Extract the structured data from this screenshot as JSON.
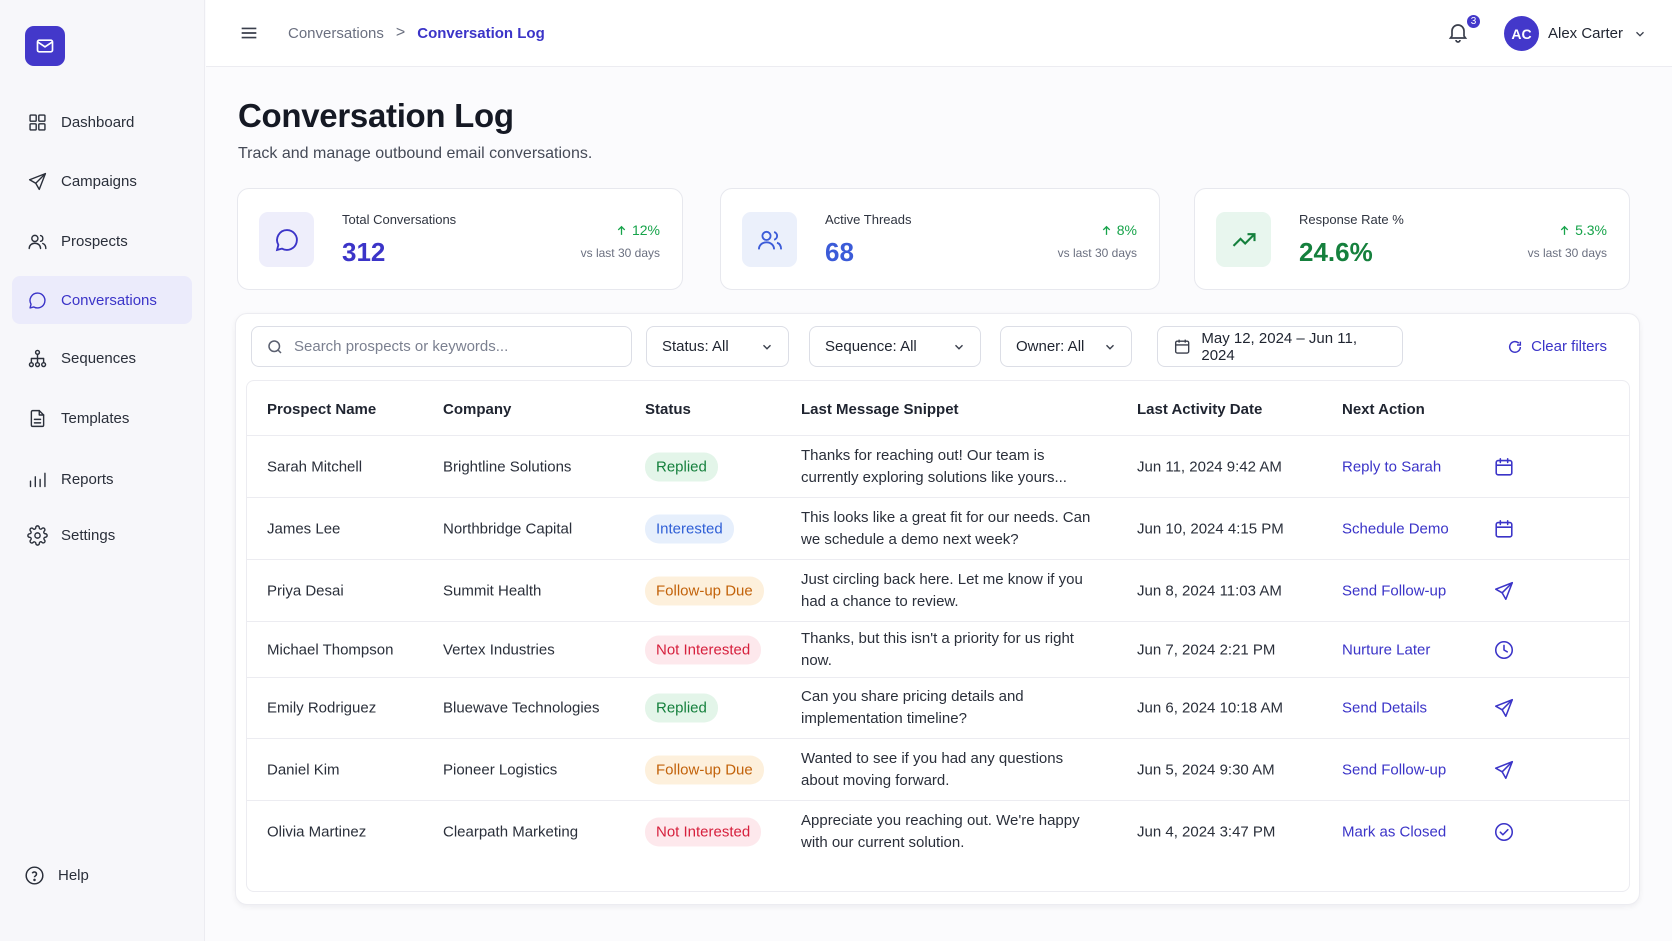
{
  "sidebar": {
    "logo_icon": "mail-icon",
    "items": [
      {
        "label": "Dashboard",
        "icon": "grid-icon",
        "active": false
      },
      {
        "label": "Campaigns",
        "icon": "send-icon",
        "active": false
      },
      {
        "label": "Prospects",
        "icon": "users-icon",
        "active": false
      },
      {
        "label": "Conversations",
        "icon": "chat-icon",
        "active": true
      },
      {
        "label": "Sequences",
        "icon": "hierarchy-icon",
        "active": false
      },
      {
        "label": "Templates",
        "icon": "document-icon",
        "active": false
      },
      {
        "label": "Reports",
        "icon": "bar-chart-icon",
        "active": false
      },
      {
        "label": "Settings",
        "icon": "gear-icon",
        "active": false
      }
    ],
    "help_label": "Help"
  },
  "header": {
    "breadcrumb_parent": "Conversations",
    "breadcrumb_separator": ">",
    "breadcrumb_current": "Conversation Log",
    "notification_count": "3",
    "user_initials": "AC",
    "user_name": "Alex Carter"
  },
  "page": {
    "title": "Conversation Log",
    "subtitle": "Track and manage outbound email conversations."
  },
  "stats": [
    {
      "label": "Total Conversations",
      "value": "312",
      "delta": "12%",
      "vs": "vs last 30 days",
      "color": "#3b34c8",
      "bg": "#eeeefb"
    },
    {
      "label": "Active Threads",
      "value": "68",
      "delta": "8%",
      "vs": "vs last 30 days",
      "color": "#3b5bd8",
      "bg": "#ebf0fb"
    },
    {
      "label": "Response Rate %",
      "value": "24.6%",
      "delta": "5.3%",
      "vs": "vs last 30 days",
      "color": "#15803d",
      "bg": "#e8f6ee"
    }
  ],
  "filters": {
    "search_placeholder": "Search prospects or keywords...",
    "status": "Status: All",
    "sequence": "Sequence: All",
    "owner": "Owner: All",
    "date_range": "May 12, 2024 – Jun 11, 2024",
    "clear": "Clear filters"
  },
  "table": {
    "columns": [
      "Prospect Name",
      "Company",
      "Status",
      "Last Message Snippet",
      "Last Activity Date",
      "Next Action"
    ],
    "rows": [
      {
        "name": "Sarah Mitchell",
        "company": "Brightline Solutions",
        "status": "Replied",
        "snippet": "Thanks for reaching out! Our team is currently exploring solutions like yours...",
        "date": "Jun 11, 2024 9:42 AM",
        "action": "Reply to Sarah",
        "action_icon": "calendar-icon"
      },
      {
        "name": "James Lee",
        "company": "Northbridge Capital",
        "status": "Interested",
        "snippet": "This looks like a great fit for our needs. Can we schedule a demo next week?",
        "date": "Jun 10, 2024 4:15 PM",
        "action": "Schedule Demo",
        "action_icon": "calendar-icon"
      },
      {
        "name": "Priya Desai",
        "company": "Summit Health",
        "status": "Follow-up Due",
        "snippet": "Just circling back here. Let me know if you had a chance to review.",
        "date": "Jun 8, 2024 11:03 AM",
        "action": "Send Follow-up",
        "action_icon": "send-icon"
      },
      {
        "name": "Michael Thompson",
        "company": "Vertex Industries",
        "status": "Not Interested",
        "snippet": "Thanks, but this isn't a priority for us right now.",
        "date": "Jun 7, 2024 2:21 PM",
        "action": "Nurture Later",
        "action_icon": "clock-icon"
      },
      {
        "name": "Emily Rodriguez",
        "company": "Bluewave Technologies",
        "status": "Replied",
        "snippet": "Can you share pricing details and implementation timeline?",
        "date": "Jun 6, 2024 10:18 AM",
        "action": "Send Details",
        "action_icon": "send-icon"
      },
      {
        "name": "Daniel Kim",
        "company": "Pioneer Logistics",
        "status": "Follow-up Due",
        "snippet": "Wanted to see if you had any questions about moving forward.",
        "date": "Jun 5, 2024 9:30 AM",
        "action": "Send Follow-up",
        "action_icon": "send-icon"
      },
      {
        "name": "Olivia Martinez",
        "company": "Clearpath Marketing",
        "status": "Not Interested",
        "snippet": "Appreciate you reaching out. We're happy with our current solution.",
        "date": "Jun 4, 2024 3:47 PM",
        "action": "Mark as Closed",
        "action_icon": "check-circle-icon"
      }
    ]
  },
  "status_colors": {
    "Replied": {
      "fg": "#15803d",
      "bg": "#e3f5e9"
    },
    "Interested": {
      "fg": "#2f5fd6",
      "bg": "#e6effc"
    },
    "Follow-up Due": {
      "fg": "#c2620a",
      "bg": "#fdf0dc"
    },
    "Not Interested": {
      "fg": "#d61f3c",
      "bg": "#fde8ec"
    }
  }
}
